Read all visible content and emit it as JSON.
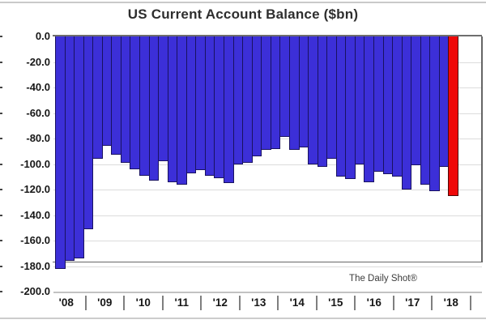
{
  "title": "US Current Account Balance ($bn)",
  "annotation": "The Daily Shot®",
  "y_axis": {
    "tick_labels": [
      "0.0",
      "-20.0",
      "-40.0",
      "-60.0",
      "-80.0",
      "-100.0",
      "-120.0",
      "-140.0",
      "-160.0",
      "-180.0",
      "-200.0"
    ],
    "min": -200,
    "max": 0
  },
  "x_axis": {
    "year_labels": [
      "'08",
      "'09",
      "'10",
      "'11",
      "'12",
      "'13",
      "'14",
      "'15",
      "'16",
      "'17",
      "'18"
    ]
  },
  "colors": {
    "bar": "#3c2fd8",
    "bar_outline": "#191260",
    "highlight_bar": "#ef0808",
    "gridline": "#dcdcdc",
    "zero_line": "#6e6e6e",
    "text": "#171717"
  },
  "chart_data": {
    "type": "bar",
    "title": "US Current Account Balance ($bn)",
    "unit": "$bn",
    "ylabel": "",
    "xlabel": "",
    "ylim": [
      -200,
      0
    ],
    "grid": true,
    "legend": "none",
    "highlight_index": 42,
    "highlight_note": "latest quarter shown in red",
    "x": [
      "2008 Q1",
      "2008 Q2",
      "2008 Q3",
      "2008 Q4",
      "2009 Q1",
      "2009 Q2",
      "2009 Q3",
      "2009 Q4",
      "2010 Q1",
      "2010 Q2",
      "2010 Q3",
      "2010 Q4",
      "2011 Q1",
      "2011 Q2",
      "2011 Q3",
      "2011 Q4",
      "2012 Q1",
      "2012 Q2",
      "2012 Q3",
      "2012 Q4",
      "2013 Q1",
      "2013 Q2",
      "2013 Q3",
      "2013 Q4",
      "2014 Q1",
      "2014 Q2",
      "2014 Q3",
      "2014 Q4",
      "2015 Q1",
      "2015 Q2",
      "2015 Q3",
      "2015 Q4",
      "2016 Q1",
      "2016 Q2",
      "2016 Q3",
      "2016 Q4",
      "2017 Q1",
      "2017 Q2",
      "2017 Q3",
      "2017 Q4",
      "2018 Q1",
      "2018 Q2",
      "2018 Q3"
    ],
    "values": [
      -182,
      -176,
      -174,
      -151,
      -96,
      -86,
      -93,
      -99,
      -104,
      -109,
      -113,
      -98,
      -114,
      -116,
      -107,
      -105,
      -109,
      -111,
      -115,
      -100,
      -99,
      -94,
      -89,
      -88,
      -79,
      -89,
      -87,
      -100,
      -102,
      -96,
      -110,
      -112,
      -100,
      -114,
      -106,
      -108,
      -110,
      -120,
      -101,
      -116,
      -121,
      -102,
      -125
    ]
  }
}
